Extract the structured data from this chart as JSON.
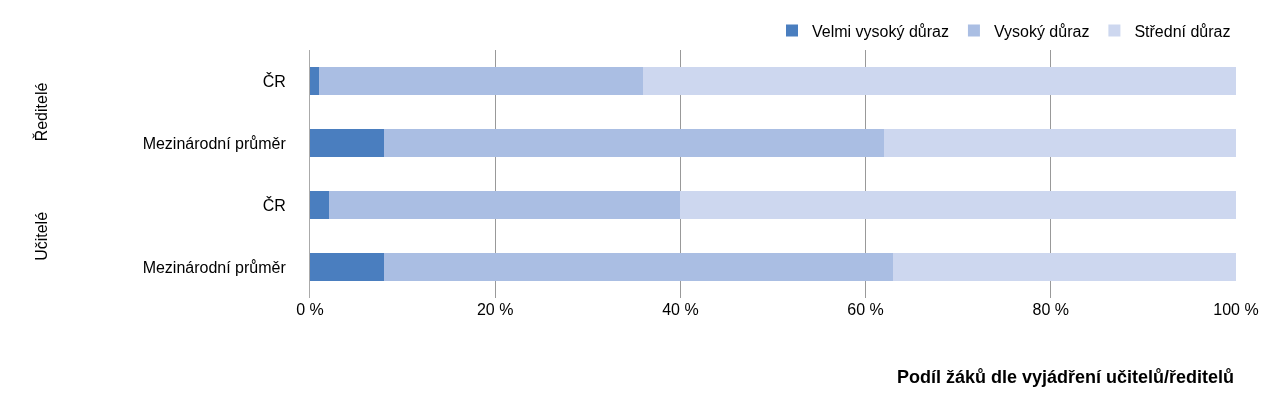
{
  "chart_data": {
    "type": "bar",
    "orientation": "horizontal",
    "stacked": true,
    "categories": [
      "ČR",
      "Mezinárodní průměr",
      "ČR",
      "Mezinárodní průměr"
    ],
    "series": [
      {
        "name": "Velmi vysoký důraz",
        "color": "#4a7ebf",
        "values": [
          1,
          8,
          2,
          8
        ]
      },
      {
        "name": "Vysoký důraz",
        "color": "#aabee3",
        "values": [
          35,
          54,
          38,
          55
        ]
      },
      {
        "name": "Střední důraz",
        "color": "#cdd7ef",
        "values": [
          64,
          38,
          60,
          37
        ]
      }
    ],
    "xlim": [
      0,
      100
    ],
    "xticks": [
      {
        "value": 0,
        "label": "0 %"
      },
      {
        "value": 20,
        "label": "20 %"
      },
      {
        "value": 40,
        "label": "40 %"
      },
      {
        "value": 60,
        "label": "60 %"
      },
      {
        "value": 80,
        "label": "80 %"
      },
      {
        "value": 100,
        "label": "100 %"
      }
    ],
    "xlabel": "Podíl žáků dle vyjádření učitelů/ředitelů",
    "annotations": [
      "Ředitelé",
      "Učitelé"
    ],
    "grid": "x",
    "legend": "top right"
  }
}
